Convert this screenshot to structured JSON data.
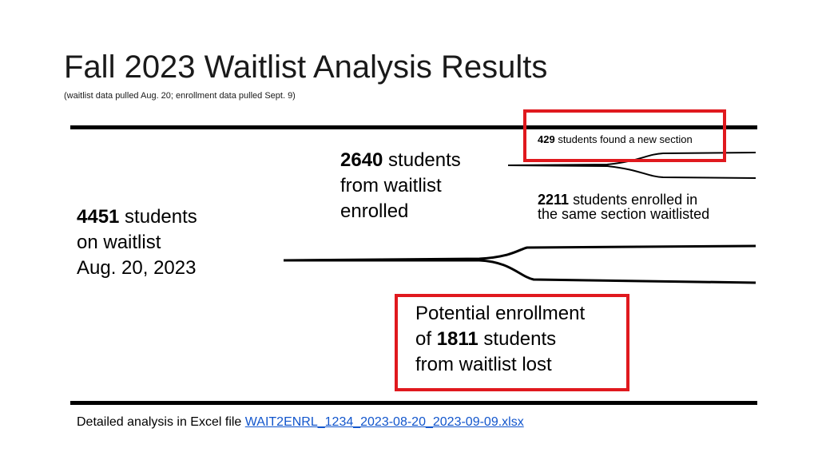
{
  "title": "Fall 2023 Waitlist Analysis Results",
  "subtitle": "(waitlist data pulled Aug. 20; enrollment data pulled Sept. 9)",
  "nodes": {
    "waitlist": {
      "number": "4451",
      "line1_rest": " students",
      "line2": "on waitlist",
      "line3": "Aug. 20, 2023"
    },
    "enrolled": {
      "number": "2640",
      "line1_rest": " students",
      "line2": "from waitlist",
      "line3": "enrolled"
    },
    "new_section": {
      "number": "429",
      "rest": " students found a new section"
    },
    "same_section": {
      "number": "2211",
      "line1_rest": " students enrolled in",
      "line2": "the same section waitlisted"
    },
    "lost": {
      "line1": "Potential enrollment",
      "line2_pre": "of ",
      "number": "1811",
      "line2_post": " students",
      "line3": "from waitlist lost"
    }
  },
  "footer": {
    "text": "Detailed analysis in Excel file ",
    "link": "WAIT2ENRL_1234_2023-08-20_2023-09-09.xlsx"
  },
  "colors": {
    "highlight_box": "#e0191e",
    "link": "#1155cc",
    "lines": "#000000"
  }
}
